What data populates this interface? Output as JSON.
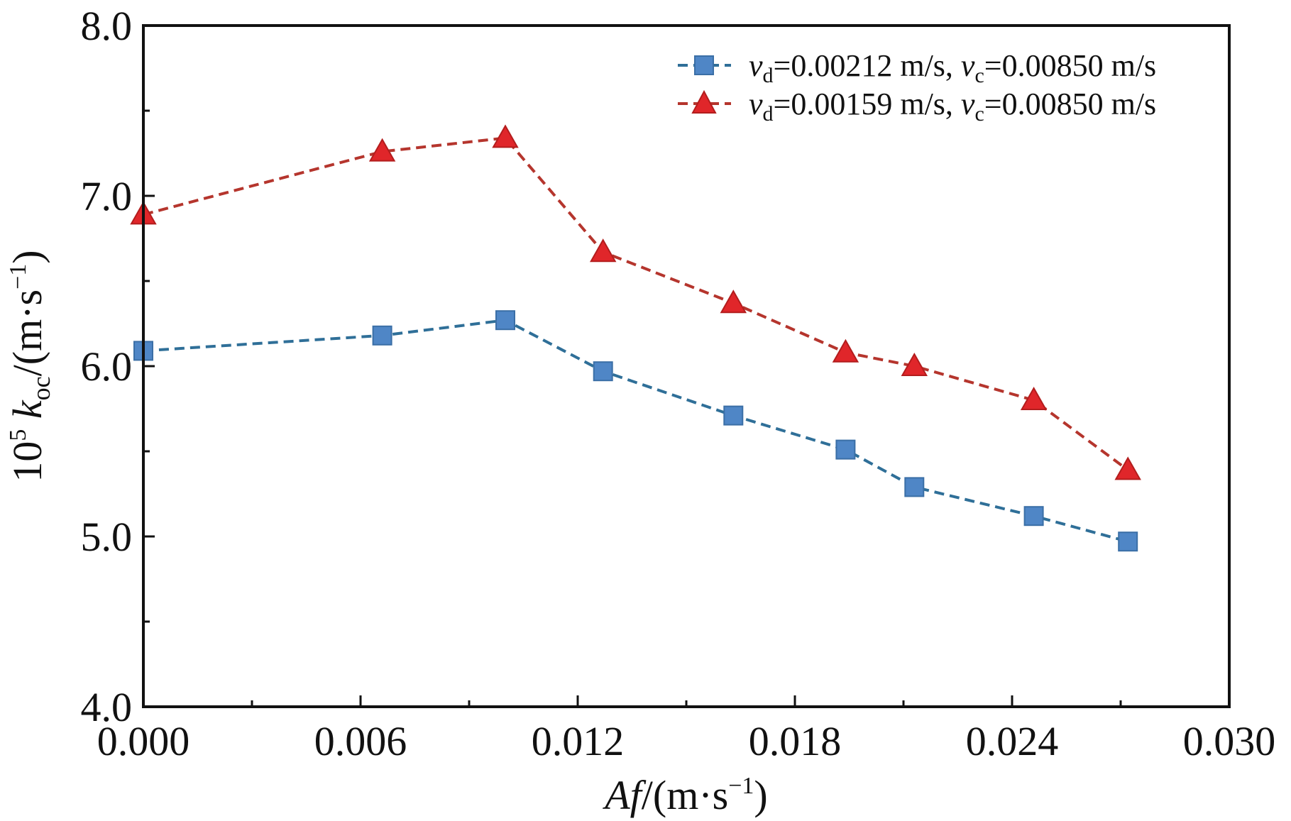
{
  "chart_data": {
    "type": "line",
    "xlabel": {
      "italic": "Af",
      "text": "/(m·s",
      "sup": "−1",
      "close": ")"
    },
    "ylabel": {
      "prefix": "10",
      "prefix_sup": "5",
      "var": "k",
      "var_sub": "oc",
      "text": "/(m·s",
      "sup": "−1",
      "close": ")"
    },
    "xlim": [
      0.0,
      0.03
    ],
    "ylim": [
      4.0,
      8.0
    ],
    "xticks": [
      "0.000",
      "0.006",
      "0.012",
      "0.018",
      "0.024",
      "0.030"
    ],
    "xtick_values": [
      0.0,
      0.006,
      0.012,
      0.018,
      0.024,
      0.03
    ],
    "yticks": [
      "4.0",
      "5.0",
      "6.0",
      "7.0",
      "8.0"
    ],
    "ytick_values": [
      4.0,
      5.0,
      6.0,
      7.0,
      8.0
    ],
    "legend_position": "top-right",
    "series": [
      {
        "name": "vd=0.00212 m/s, vc=0.00850 m/s",
        "label_parts": {
          "v1": "v",
          "s1": "d",
          "t1": "=0.00212 m/s, ",
          "v2": "v",
          "s2": "c",
          "t2": "=0.00850 m/s"
        },
        "color": "#4f86c6",
        "line_color": "#2f6f98",
        "marker": "square",
        "x": [
          0.0,
          0.0066,
          0.01,
          0.0127,
          0.0163,
          0.0194,
          0.0213,
          0.0246,
          0.0272
        ],
        "y": [
          6.09,
          6.18,
          6.27,
          5.97,
          5.71,
          5.51,
          5.29,
          5.12,
          4.97
        ]
      },
      {
        "name": "vd=0.00159 m/s, vc=0.00850 m/s",
        "label_parts": {
          "v1": "v",
          "s1": "d",
          "t1": "=0.00159 m/s, ",
          "v2": "v",
          "s2": "c",
          "t2": "=0.00850 m/s"
        },
        "color": "#e0262a",
        "line_color": "#b5352d",
        "marker": "triangle",
        "x": [
          0.0,
          0.0066,
          0.01,
          0.0127,
          0.0163,
          0.0194,
          0.0213,
          0.0246,
          0.0272
        ],
        "y": [
          6.89,
          7.26,
          7.34,
          6.67,
          6.37,
          6.08,
          6.0,
          5.8,
          5.39
        ]
      }
    ]
  }
}
